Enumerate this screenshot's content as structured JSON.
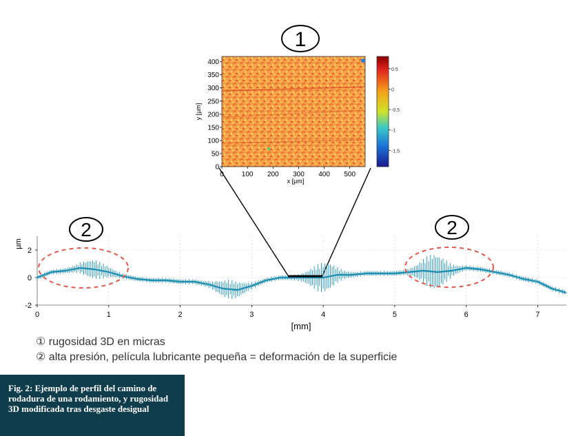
{
  "callouts": {
    "one": "1",
    "two_left": "2",
    "two_right": "2"
  },
  "legend": {
    "item1": "① rugosidad 3D en micras",
    "item2": "② alta presión, película lubricante pequeña = deformación de la superficie"
  },
  "caption": {
    "text": "Fig. 2: Ejemplo de perfil del camino de rodadura de una rodamiento, y rugosidad 3D modificada tras desgaste desigual"
  },
  "colors": {
    "profile": "#1f8fb3",
    "ellipse": "#e05a4f",
    "caption_bg": "#0f3d4b",
    "grid": "#c8c8c8"
  },
  "chart_data": [
    {
      "type": "heatmap",
      "title": "",
      "xlabel": "x [µm]",
      "ylabel": "y [µm]",
      "xlim": [
        0,
        560
      ],
      "ylim": [
        0,
        420
      ],
      "xticks": [
        0,
        100,
        200,
        300,
        400,
        500
      ],
      "yticks": [
        0,
        50,
        100,
        150,
        200,
        250,
        300,
        350,
        400
      ],
      "colorbar": {
        "range": [
          -1.9,
          0.8
        ],
        "ticks": [
          0.5,
          0,
          -0.5,
          -1,
          -1.5
        ]
      }
    },
    {
      "type": "line",
      "title": "",
      "xlabel": "[mm]",
      "ylabel": "µm",
      "xlim": [
        0,
        7.4
      ],
      "ylim": [
        -2,
        3
      ],
      "xticks": [
        0,
        1,
        2,
        3,
        4,
        5,
        6,
        7
      ],
      "yticks": [
        2,
        0,
        -2
      ],
      "grid": true,
      "x": [
        0,
        0.2,
        0.4,
        0.6,
        0.8,
        1.0,
        1.2,
        1.4,
        1.6,
        1.8,
        2.0,
        2.2,
        2.4,
        2.6,
        2.8,
        3.0,
        3.2,
        3.4,
        3.6,
        3.8,
        4.0,
        4.2,
        4.4,
        4.6,
        4.8,
        5.0,
        5.2,
        5.4,
        5.6,
        5.8,
        6.0,
        6.2,
        6.4,
        6.6,
        6.8,
        7.0,
        7.2,
        7.4
      ],
      "values": [
        0,
        0.4,
        0.5,
        0.7,
        0.6,
        0.4,
        0.1,
        -0.1,
        -0.2,
        -0.2,
        -0.3,
        -0.3,
        -0.5,
        -0.8,
        -0.9,
        -0.6,
        -0.2,
        0.0,
        0.0,
        0.0,
        0.0,
        0.2,
        0.2,
        0.3,
        0.3,
        0.3,
        0.4,
        0.5,
        0.4,
        0.5,
        0.7,
        0.6,
        0.4,
        0.2,
        -0.1,
        -0.3,
        -0.8,
        -1.1
      ],
      "peaks": [
        {
          "x": 0.8,
          "amp": 0.5
        },
        {
          "x": 2.7,
          "amp": 0.5
        },
        {
          "x": 4.0,
          "amp": 0.9
        },
        {
          "x": 5.55,
          "amp": 1.1
        }
      ]
    }
  ]
}
